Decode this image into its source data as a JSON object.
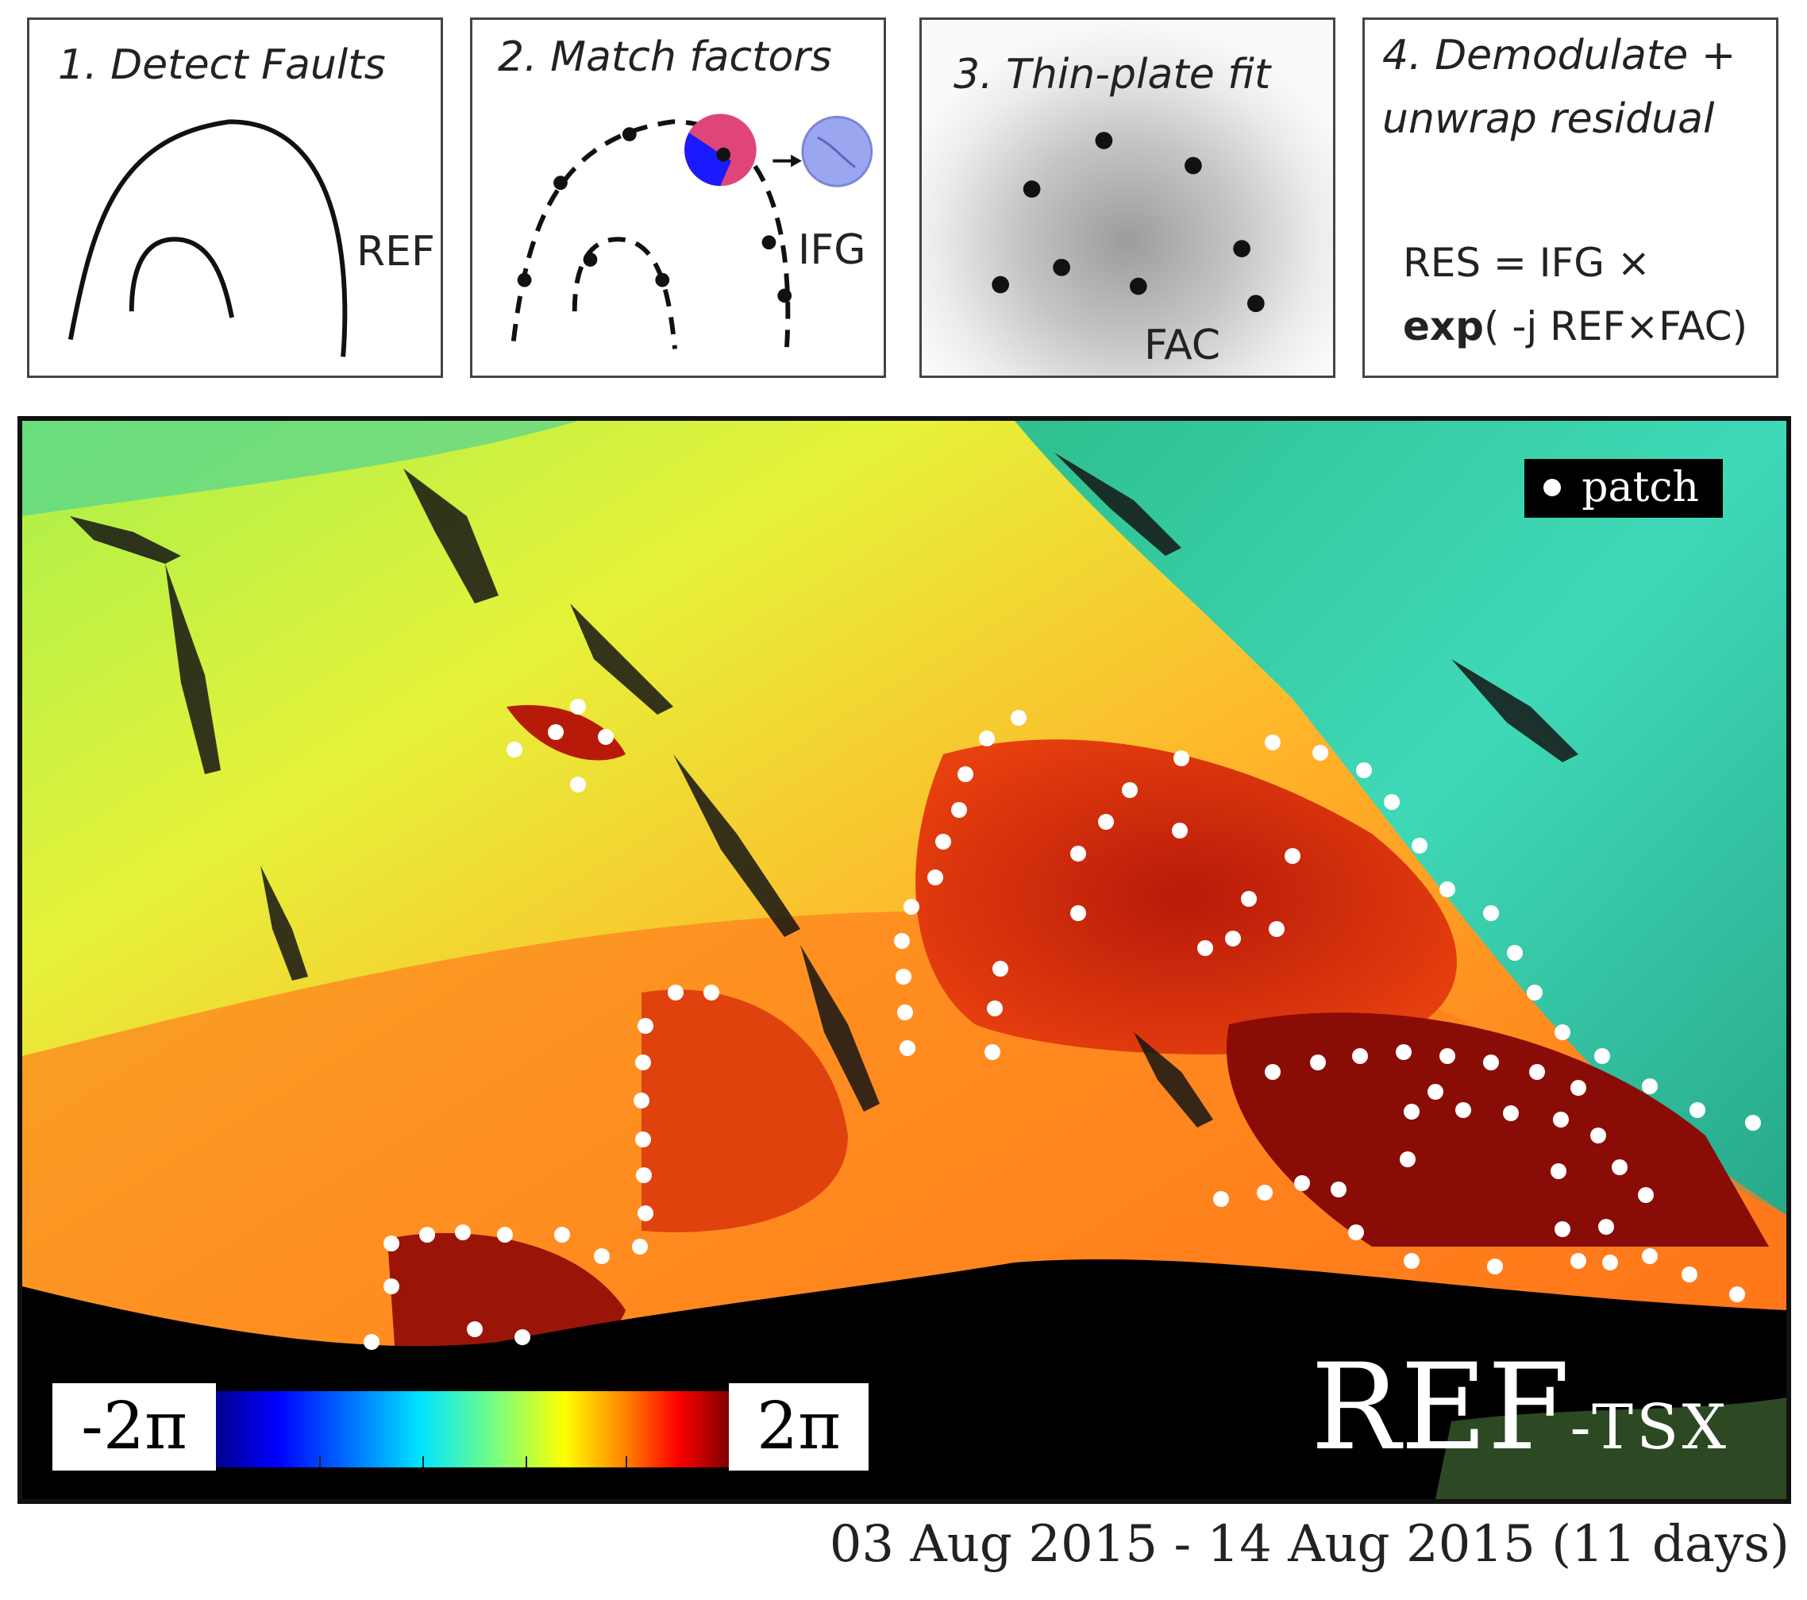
{
  "panels": [
    {
      "title": "1. Detect Faults",
      "label": "REF"
    },
    {
      "title": "2. Match factors",
      "label": "IFG"
    },
    {
      "title": "3. Thin-plate fit",
      "label": "FAC"
    },
    {
      "title_line1": "4. Demodulate +",
      "title_line2": "unwrap residual",
      "formula_line1": "RES = IFG ×",
      "formula_bold": "exp",
      "formula_rest": "( -j REF×FAC)"
    }
  ],
  "map": {
    "legend": {
      "marker": "white-dot",
      "label": "patch"
    },
    "colorbar": {
      "min_label": "-2π",
      "max_label": "2π",
      "colormap": "jet"
    },
    "product_label_main": "REF",
    "product_label_suffix": "-TSX"
  },
  "caption": "03 Aug 2015 - 14 Aug 2015 (11 days)"
}
